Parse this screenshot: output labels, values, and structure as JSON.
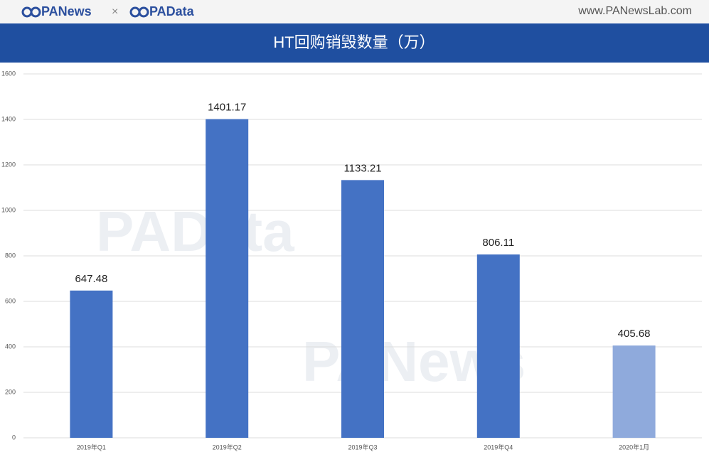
{
  "header": {
    "brand_left": "PANews",
    "separator": "×",
    "brand_right": "PAData",
    "url": "www.PANewsLab.com"
  },
  "watermarks": [
    "PAData",
    "PANews"
  ],
  "chart_data": {
    "type": "bar",
    "title": "HT回购销毁数量（万）",
    "categories": [
      "2019年Q1",
      "2019年Q2",
      "2019年Q3",
      "2019年Q4",
      "2020年1月"
    ],
    "values": [
      647.48,
      1401.17,
      1133.21,
      806.11,
      405.68
    ],
    "colors": [
      "#4472c4",
      "#4472c4",
      "#4472c4",
      "#4472c4",
      "#8faadc"
    ],
    "ylim": [
      0,
      1600
    ],
    "yticks": [
      0,
      200,
      400,
      600,
      800,
      1000,
      1200,
      1400,
      1600
    ],
    "grid": true
  }
}
